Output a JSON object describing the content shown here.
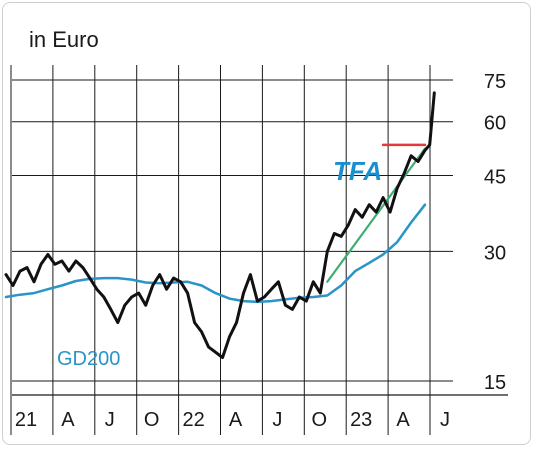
{
  "chart_data": {
    "type": "line",
    "unit_label": "in Euro",
    "y_scale": "log",
    "ylim": [
      15,
      75
    ],
    "y_ticks": [
      75,
      60,
      45,
      30,
      15
    ],
    "x_ticks": [
      {
        "label": "21",
        "x": "2021-01"
      },
      {
        "label": "A",
        "x": "2021-04"
      },
      {
        "label": "J",
        "x": "2021-07"
      },
      {
        "label": "O",
        "x": "2021-10"
      },
      {
        "label": "22",
        "x": "2022-01"
      },
      {
        "label": "A",
        "x": "2022-04"
      },
      {
        "label": "J",
        "x": "2022-07"
      },
      {
        "label": "O",
        "x": "2022-10"
      },
      {
        "label": "23",
        "x": "2023-01"
      },
      {
        "label": "A",
        "x": "2023-04"
      },
      {
        "label": "J",
        "x": "2023-07"
      }
    ],
    "grid": true,
    "colors": {
      "price": "#111111",
      "gd200": "#2a94c8",
      "trend": "#3fae74",
      "resistance": "#e23a3a",
      "label": "#1a8fd0"
    },
    "series": [
      {
        "key": "price",
        "x": [
          "2020-12",
          "2020-12",
          "2021-01",
          "2021-01",
          "2021-02",
          "2021-02",
          "2021-03",
          "2021-03",
          "2021-04",
          "2021-04",
          "2021-05",
          "2021-05",
          "2021-06",
          "2021-06",
          "2021-07",
          "2021-07",
          "2021-08",
          "2021-08",
          "2021-09",
          "2021-09",
          "2021-10",
          "2021-10",
          "2021-11",
          "2021-11",
          "2021-12",
          "2021-12",
          "2022-01",
          "2022-01",
          "2022-02",
          "2022-02",
          "2022-03",
          "2022-03",
          "2022-04",
          "2022-04",
          "2022-05",
          "2022-05",
          "2022-06",
          "2022-06",
          "2022-07",
          "2022-07",
          "2022-08",
          "2022-08",
          "2022-09",
          "2022-09",
          "2022-10",
          "2022-10",
          "2022-11",
          "2022-11",
          "2022-12",
          "2022-12",
          "2023-01",
          "2023-01",
          "2023-02",
          "2023-02",
          "2023-03",
          "2023-03",
          "2023-04",
          "2023-04",
          "2023-05",
          "2023-05",
          "2023-06",
          "2023-06",
          "2023-06"
        ],
        "values": [
          26.5,
          25.0,
          27.0,
          27.5,
          25.5,
          28.0,
          29.5,
          28.0,
          28.5,
          27.0,
          28.5,
          27.5,
          26.0,
          24.5,
          23.5,
          22.0,
          20.5,
          22.5,
          23.5,
          24.0,
          22.5,
          25.0,
          26.5,
          24.5,
          26.0,
          25.5,
          24.0,
          20.5,
          19.5,
          18.0,
          17.5,
          17.0,
          19.0,
          20.5,
          24.0,
          26.5,
          23.0,
          23.5,
          24.5,
          25.5,
          22.5,
          22.0,
          23.5,
          23.0,
          25.5,
          24.0,
          30.0,
          33.0,
          32.5,
          34.5,
          37.5,
          36.0,
          38.5,
          37.0,
          40.0,
          37.0,
          42.0,
          45.5,
          50.0,
          48.5,
          51.5,
          53.0,
          70.0
        ],
        "name": ""
      },
      {
        "key": "gd200",
        "label": "GD200",
        "x": [
          "2020-12",
          "2021-01",
          "2021-02",
          "2021-03",
          "2021-04",
          "2021-05",
          "2021-06",
          "2021-07",
          "2021-08",
          "2021-09",
          "2021-10",
          "2021-11",
          "2021-12",
          "2022-01",
          "2022-02",
          "2022-03",
          "2022-04",
          "2022-05",
          "2022-06",
          "2022-07",
          "2022-08",
          "2022-09",
          "2022-10",
          "2022-11",
          "2022-12",
          "2023-01",
          "2023-02",
          "2023-03",
          "2023-04",
          "2023-05",
          "2023-06"
        ],
        "values": [
          23.5,
          23.8,
          24.0,
          24.5,
          25.0,
          25.6,
          25.9,
          26.0,
          26.0,
          25.8,
          25.4,
          25.3,
          25.4,
          25.5,
          25.0,
          24.0,
          23.3,
          23.0,
          22.9,
          23.0,
          23.2,
          23.4,
          23.5,
          23.7,
          25.0,
          27.0,
          28.2,
          29.5,
          31.5,
          35.0,
          38.5
        ]
      },
      {
        "key": "trend",
        "label": "TFA",
        "x": [
          "2022-11",
          "2023-06"
        ],
        "values": [
          25.5,
          52.0
        ]
      },
      {
        "key": "resistance",
        "x": [
          "2023-03",
          "2023-06"
        ],
        "values": [
          53.0,
          53.0
        ]
      }
    ],
    "annotations": [
      "TFA",
      "GD200"
    ]
  }
}
